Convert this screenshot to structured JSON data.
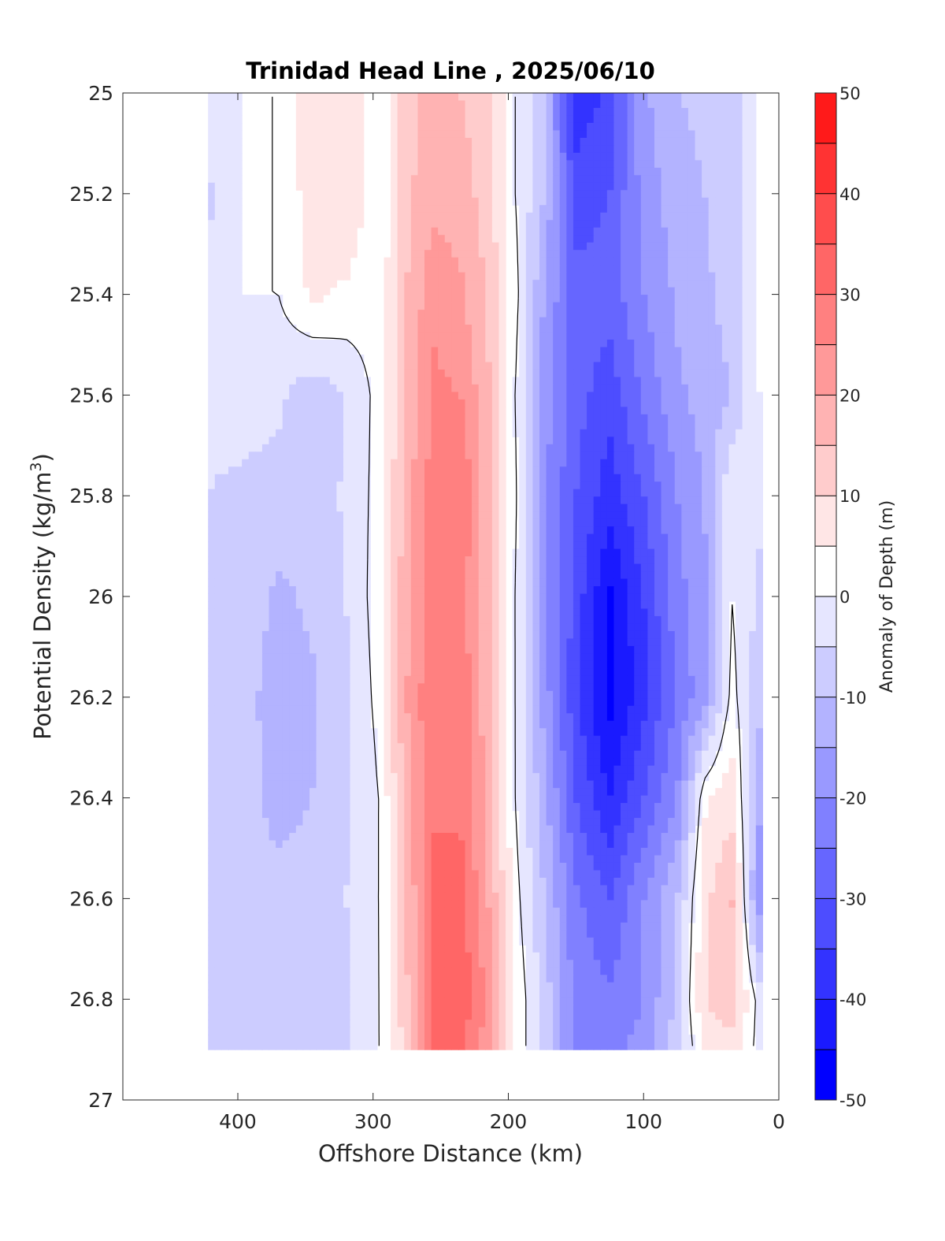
{
  "chart_data": {
    "type": "heatmap",
    "subtype": "filled-contour",
    "title": "Trinidad Head Line , 2025/06/10",
    "xlabel": "Offshore Distance (km)",
    "ylabel_main": "Potential Density (kg/m",
    "ylabel_sup": "3",
    "ylabel_close": ")",
    "xlim": [
      485,
      0
    ],
    "x_reversed": true,
    "ylim": [
      25,
      27
    ],
    "y_reversed": true,
    "x_ticks": [
      400,
      300,
      200,
      100,
      0
    ],
    "y_ticks": [
      "25",
      "25.2",
      "25.4",
      "25.6",
      "25.8",
      "26",
      "26.2",
      "26.4",
      "26.6",
      "26.8",
      "27"
    ],
    "colorbar": {
      "label": "Anomaly of Depth (m)",
      "ticks": [
        50,
        40,
        30,
        20,
        10,
        0,
        -10,
        -20,
        -30,
        -40,
        -50
      ],
      "limits": [
        -50,
        50
      ],
      "level_step": 5,
      "colors": [
        "#0000ff",
        "#1a1aff",
        "#3333ff",
        "#4d4dff",
        "#6666ff",
        "#8080ff",
        "#9999ff",
        "#b3b3ff",
        "#ccccff",
        "#e6e6ff",
        "#ffffff",
        "#ffe6e6",
        "#ffcccc",
        "#ffb3b3",
        "#ff9999",
        "#ff8080",
        "#ff6666",
        "#ff4d4d",
        "#ff3333",
        "#ff1a1a",
        "#ff0000"
      ]
    },
    "data_extent": {
      "x": [
        422,
        12
      ],
      "y": [
        25,
        26.9
      ]
    },
    "columns_x_km": [
      422,
      395,
      370,
      345,
      320,
      295,
      275,
      255,
      235,
      215,
      195,
      175,
      150,
      125,
      100,
      75,
      55,
      35,
      15
    ],
    "rows_density": [
      25.0,
      25.2,
      25.4,
      25.6,
      25.8,
      26.0,
      26.2,
      26.4,
      26.6,
      26.8,
      26.9
    ],
    "anomaly_m": [
      [
        0,
        0,
        0,
        9,
        9,
        0,
        14,
        16,
        15,
        12,
        0,
        -8,
        -38,
        -34,
        -16,
        -10,
        -9,
        -8,
        0
      ],
      [
        -6,
        0,
        0,
        8,
        10,
        0,
        14,
        18,
        17,
        13,
        0,
        -9,
        -33,
        -30,
        -18,
        -12,
        -10,
        -8,
        0
      ],
      [
        -4,
        0,
        0,
        6,
        4,
        2,
        15,
        24,
        21,
        14,
        2,
        -14,
        -28,
        -28,
        -20,
        -14,
        -11,
        -8,
        0
      ],
      [
        -4,
        -3,
        -4,
        -8,
        -5,
        2,
        16,
        26,
        25,
        16,
        0,
        -17,
        -28,
        -33,
        -24,
        -16,
        -13,
        -10,
        0
      ],
      [
        -5,
        -6,
        -7,
        -9,
        -4,
        2,
        18,
        28,
        30,
        17,
        1,
        -18,
        -30,
        -38,
        -30,
        -20,
        -15,
        0,
        -4
      ],
      [
        -6,
        -7,
        -11,
        -9,
        -5,
        3,
        19,
        28,
        27,
        16,
        0,
        -18,
        -32,
        -46,
        -35,
        -22,
        -16,
        0,
        -6
      ],
      [
        -7,
        -8,
        -13,
        -11,
        -6,
        2,
        20,
        30,
        29,
        17,
        0,
        -16,
        -34,
        -47,
        -37,
        -24,
        -17,
        2,
        -8
      ],
      [
        -6,
        -8,
        -12,
        -10,
        -6,
        0,
        18,
        30,
        29,
        18,
        0,
        -12,
        -30,
        -40,
        -30,
        -20,
        4,
        8,
        -14
      ],
      [
        -5,
        -8,
        -8,
        -8,
        -5,
        0,
        16,
        30,
        32,
        20,
        2,
        -9,
        -24,
        -30,
        -20,
        -10,
        8,
        16,
        -18
      ],
      [
        -6,
        -7,
        -7,
        -8,
        -6,
        0,
        14,
        34,
        34,
        24,
        4,
        -6,
        -22,
        -24,
        -20,
        -8,
        10,
        14,
        -2
      ],
      [
        -6,
        -7,
        -8,
        -10,
        -6,
        0,
        12,
        32,
        30,
        22,
        4,
        -6,
        -22,
        -22,
        -18,
        -8,
        6,
        8,
        -2
      ]
    ]
  }
}
